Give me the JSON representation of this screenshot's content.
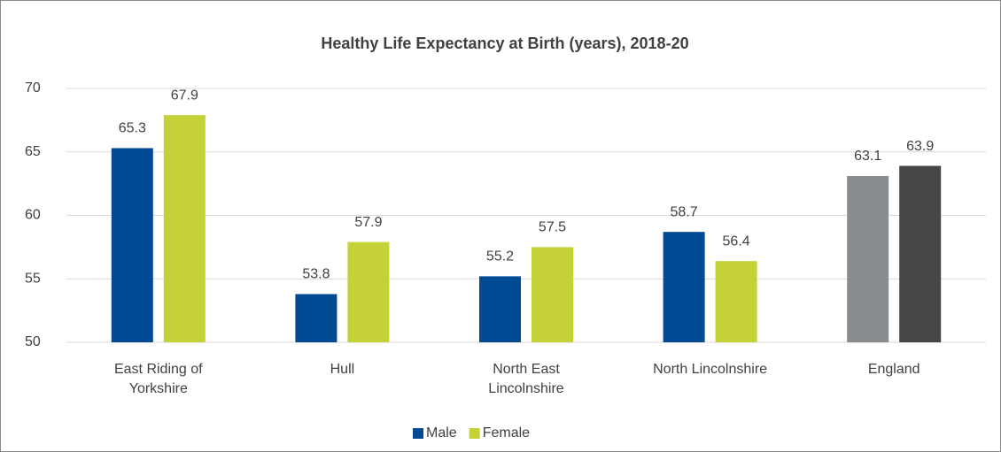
{
  "chart_data": {
    "type": "bar",
    "title": "Healthy Life Expectancy at Birth (years), 2018-20",
    "categories": [
      "East Riding of Yorkshire",
      "Hull",
      "North East Lincolnshire",
      "North Lincolnshire",
      "England"
    ],
    "series": [
      {
        "name": "Male",
        "color": "#004b93",
        "values": [
          65.3,
          53.8,
          55.2,
          58.7,
          63.1
        ],
        "colors": [
          "#004b93",
          "#004b93",
          "#004b93",
          "#004b93",
          "#898c8e"
        ]
      },
      {
        "name": "Female",
        "color": "#c4d238",
        "values": [
          67.9,
          57.9,
          57.5,
          56.4,
          63.9
        ],
        "colors": [
          "#c4d238",
          "#c4d238",
          "#c4d238",
          "#c4d238",
          "#454648"
        ]
      }
    ],
    "ylim": [
      50,
      70
    ],
    "yticks": [
      50,
      55,
      60,
      65,
      70
    ],
    "grid": true,
    "legend": "bottom"
  }
}
